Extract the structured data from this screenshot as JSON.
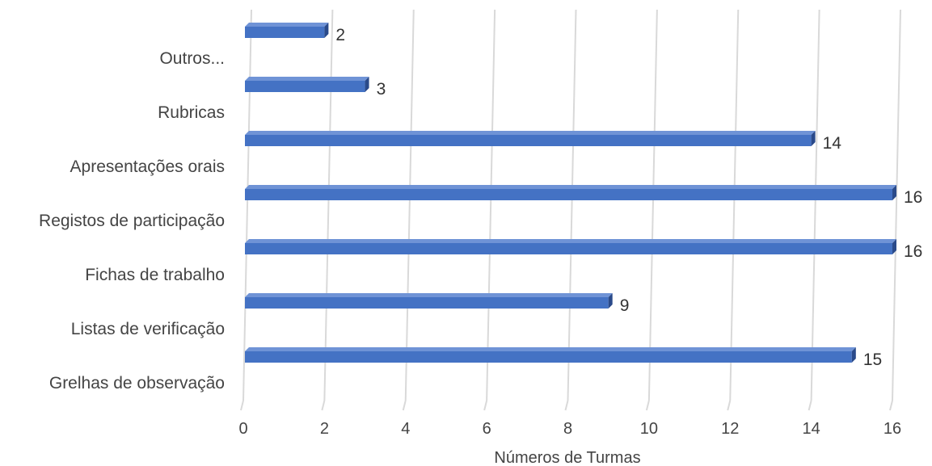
{
  "chart_data": {
    "type": "bar",
    "orientation": "horizontal",
    "title": "",
    "xlabel": "Números de Turmas",
    "ylabel": "",
    "categories": [
      "Outros...",
      "Rubricas",
      "Apresentações orais",
      "Registos de participação",
      "Fichas de trabalho",
      "Listas de verificação",
      "Grelhas de observação"
    ],
    "series": [
      {
        "values": [
          2,
          3,
          14,
          16,
          16,
          9,
          15
        ]
      }
    ],
    "data_labels": [
      "2",
      "3",
      "14",
      "16",
      "16",
      "9",
      "15"
    ],
    "xlim": [
      0,
      16
    ],
    "xticks": [
      0,
      2,
      4,
      6,
      8,
      10,
      12,
      14,
      16
    ],
    "xtick_labels": [
      "0",
      "2",
      "4",
      "6",
      "8",
      "10",
      "12",
      "14",
      "16"
    ],
    "grid": "vertical",
    "legend": "none",
    "bar_style": "3d",
    "colors": {
      "bar_front": "#4472c4",
      "bar_top": "#6f93d6",
      "bar_side": "#2a4a8a",
      "gridline": "#d9d9d9",
      "text": "#444444"
    }
  }
}
